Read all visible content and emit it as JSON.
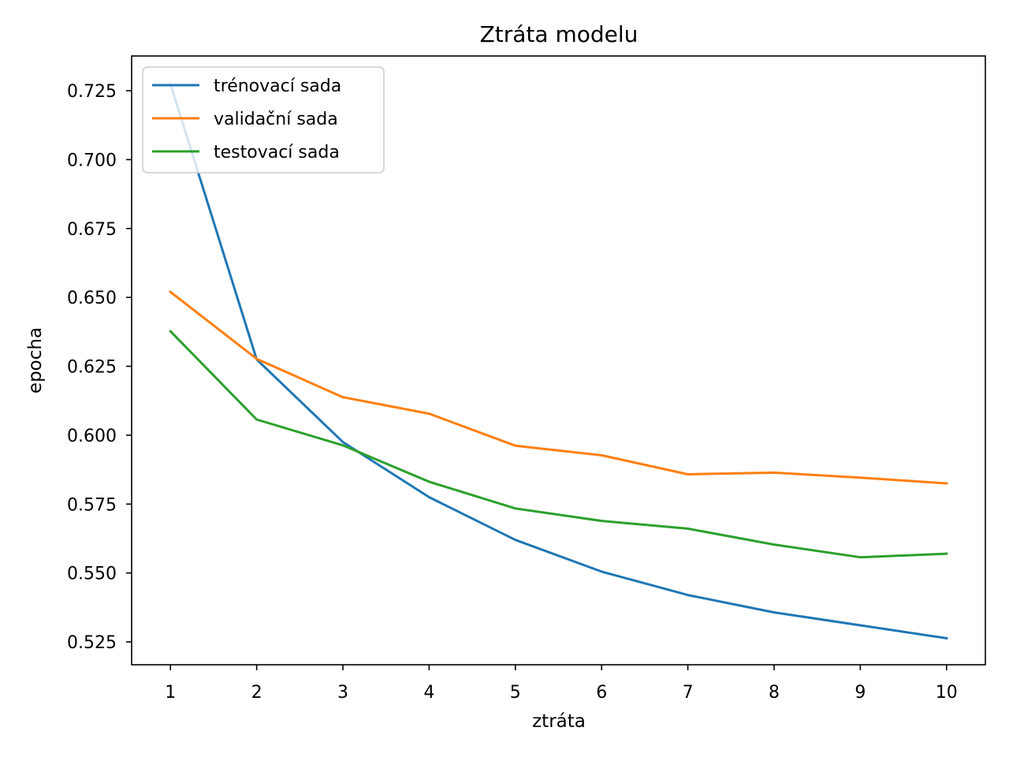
{
  "chart_data": {
    "type": "line",
    "title": "Ztráta modelu",
    "xlabel": "ztráta",
    "ylabel": "epocha",
    "x": [
      1,
      2,
      3,
      4,
      5,
      6,
      7,
      8,
      9,
      10
    ],
    "xlim": [
      0.55,
      10.45
    ],
    "ylim": [
      0.5167,
      0.7376
    ],
    "xticks": [
      1,
      2,
      3,
      4,
      5,
      6,
      7,
      8,
      9,
      10
    ],
    "yticks": [
      0.525,
      0.55,
      0.575,
      0.6,
      0.625,
      0.65,
      0.675,
      0.7,
      0.725
    ],
    "ytick_labels": [
      "0.525",
      "0.550",
      "0.575",
      "0.600",
      "0.625",
      "0.650",
      "0.675",
      "0.700",
      "0.725"
    ],
    "grid": false,
    "legend_position": "top-left",
    "series": [
      {
        "name": "trénovací sada",
        "color": "#1f77b4",
        "values": [
          0.7275,
          0.6275,
          0.5975,
          0.5775,
          0.562,
          0.5505,
          0.542,
          0.5357,
          0.531,
          0.5263
        ]
      },
      {
        "name": "validační sada",
        "color": "#ff7f0e",
        "values": [
          0.652,
          0.6277,
          0.6138,
          0.6078,
          0.5962,
          0.5927,
          0.5858,
          0.5864,
          0.5846,
          0.5825
        ]
      },
      {
        "name": "testovací sada",
        "color": "#2ca02c",
        "values": [
          0.6377,
          0.6057,
          0.5963,
          0.5831,
          0.5734,
          0.5689,
          0.5661,
          0.5603,
          0.5557,
          0.557
        ]
      }
    ]
  }
}
